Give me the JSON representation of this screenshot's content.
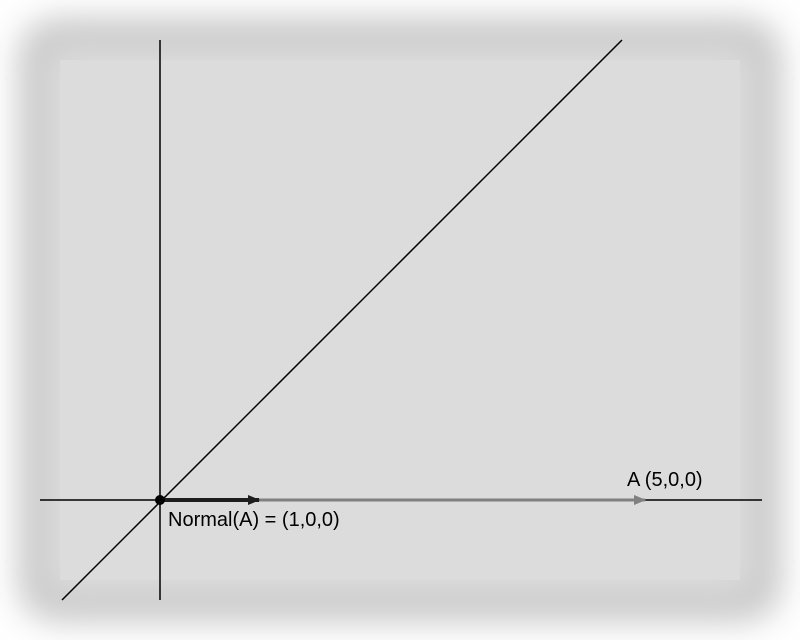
{
  "labels": {
    "vector_a": "A (5,0,0)",
    "normal_a": "Normal(A) = (1,0,0)"
  },
  "vectors": [
    {
      "name": "A",
      "components": [
        5,
        0,
        0
      ]
    },
    {
      "name": "Normal(A)",
      "components": [
        1,
        0,
        0
      ]
    }
  ],
  "colors": {
    "background": "#dcdcdc",
    "axes": "#000000",
    "vector_a": "#808080",
    "normal_vector": "#1e1e1e",
    "origin_point": "#000000"
  }
}
